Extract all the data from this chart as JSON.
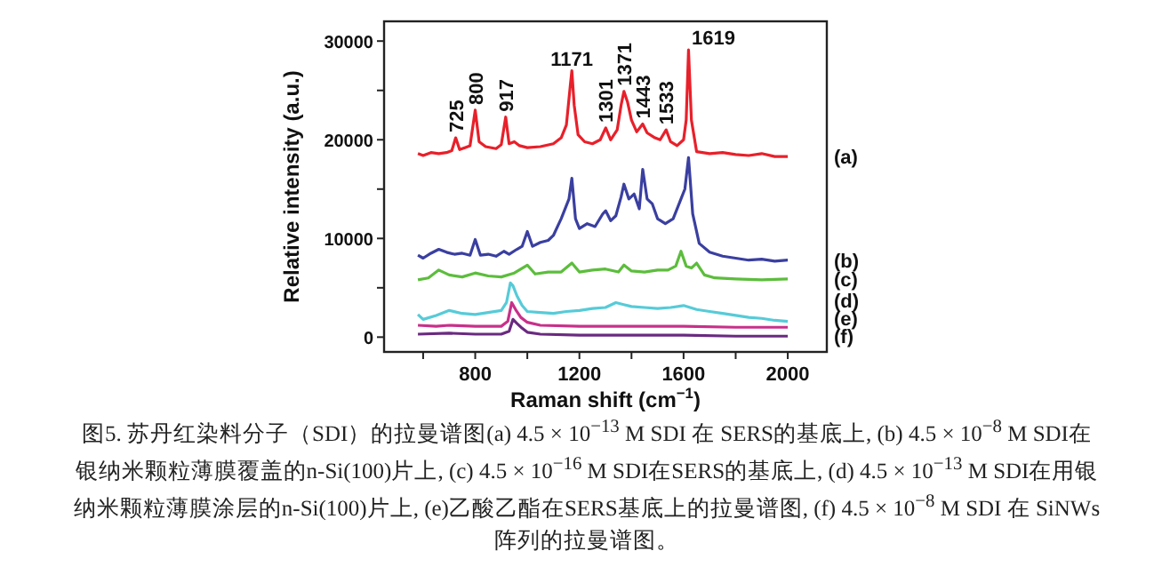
{
  "chart_data": {
    "type": "line",
    "xlabel": "Raman shift (cm$^{−1}$)",
    "ylabel": "Relative intensity (a.u.)",
    "xlim": [
      450,
      2150
    ],
    "ylim": [
      -1500,
      32000
    ],
    "xticks": [
      {
        "value": 600,
        "label": null
      },
      800,
      {
        "value": 1000,
        "label": null
      },
      1200,
      {
        "value": 1400,
        "label": null
      },
      1600,
      {
        "value": 1800,
        "label": null
      },
      2000
    ],
    "yticks": [
      0,
      {
        "value": 5000,
        "label": null
      },
      10000,
      {
        "value": 15000,
        "label": null
      },
      20000,
      {
        "value": 25000,
        "label": null
      },
      30000
    ],
    "series": [
      {
        "name": "(a)",
        "color": "#e8202a",
        "x": [
          580,
          600,
          630,
          660,
          690,
          710,
          725,
          740,
          760,
          780,
          800,
          815,
          840,
          880,
          900,
          917,
          930,
          950,
          970,
          1000,
          1050,
          1100,
          1130,
          1150,
          1165,
          1171,
          1180,
          1195,
          1220,
          1250,
          1280,
          1301,
          1320,
          1345,
          1360,
          1371,
          1385,
          1400,
          1420,
          1443,
          1460,
          1490,
          1510,
          1533,
          1550,
          1575,
          1600,
          1610,
          1619,
          1630,
          1650,
          1700,
          1750,
          1800,
          1850,
          1900,
          1950,
          2000
        ],
        "values": [
          18600,
          18400,
          18700,
          18600,
          18700,
          18900,
          20200,
          19000,
          19200,
          19400,
          23000,
          19800,
          19300,
          19100,
          19500,
          22300,
          19600,
          19800,
          19400,
          19200,
          19300,
          19600,
          20200,
          21500,
          25500,
          27000,
          23500,
          20500,
          19800,
          19600,
          20000,
          21200,
          20000,
          21000,
          23500,
          24900,
          23800,
          22000,
          20800,
          21600,
          20700,
          20200,
          20000,
          21000,
          19800,
          19400,
          20000,
          22000,
          29100,
          22000,
          18800,
          18600,
          18700,
          18500,
          18400,
          18600,
          18300,
          18300
        ]
      },
      {
        "name": "(b)",
        "color": "#3a3fa0",
        "x": [
          580,
          600,
          630,
          660,
          690,
          720,
          750,
          780,
          800,
          820,
          850,
          880,
          910,
          930,
          960,
          980,
          1000,
          1020,
          1050,
          1080,
          1100,
          1130,
          1160,
          1171,
          1185,
          1200,
          1230,
          1260,
          1290,
          1301,
          1320,
          1340,
          1360,
          1371,
          1390,
          1410,
          1430,
          1443,
          1460,
          1480,
          1500,
          1530,
          1560,
          1590,
          1605,
          1619,
          1635,
          1660,
          1700,
          1750,
          1800,
          1850,
          1900,
          1950,
          2000
        ],
        "values": [
          8300,
          8000,
          8500,
          8900,
          8600,
          8400,
          8500,
          8300,
          9900,
          8300,
          8400,
          8200,
          8700,
          8400,
          8900,
          9200,
          10700,
          9200,
          9600,
          9800,
          10300,
          12000,
          14000,
          16100,
          12000,
          11000,
          11500,
          11200,
          12500,
          12800,
          11800,
          12300,
          14200,
          15500,
          14000,
          14500,
          13000,
          17000,
          14000,
          13500,
          12000,
          11500,
          12000,
          14000,
          15000,
          18200,
          12500,
          9500,
          8600,
          8200,
          8000,
          7800,
          7900,
          7700,
          7800
        ]
      },
      {
        "name": "(c)",
        "color": "#5cbd3c",
        "x": [
          580,
          620,
          660,
          700,
          750,
          800,
          850,
          900,
          950,
          1000,
          1030,
          1080,
          1130,
          1171,
          1200,
          1250,
          1300,
          1350,
          1371,
          1400,
          1450,
          1500,
          1540,
          1570,
          1590,
          1610,
          1630,
          1650,
          1680,
          1720,
          1800,
          1900,
          2000
        ],
        "values": [
          5800,
          6000,
          6800,
          6300,
          6100,
          6500,
          6200,
          6100,
          6500,
          7300,
          6400,
          6600,
          6600,
          7500,
          6600,
          6800,
          6900,
          6600,
          7300,
          6700,
          6600,
          6800,
          6800,
          7200,
          8700,
          7200,
          7000,
          7500,
          6300,
          6000,
          5900,
          5800,
          5900
        ]
      },
      {
        "name": "(d)",
        "color": "#56cbd8",
        "x": [
          580,
          600,
          650,
          700,
          750,
          800,
          850,
          900,
          920,
          935,
          945,
          960,
          980,
          1000,
          1050,
          1100,
          1150,
          1200,
          1250,
          1300,
          1340,
          1370,
          1400,
          1450,
          1500,
          1550,
          1600,
          1650,
          1700,
          1750,
          1800,
          1850,
          1900,
          1950,
          2000
        ],
        "values": [
          2300,
          1800,
          2200,
          2700,
          2400,
          2300,
          2500,
          2700,
          3500,
          5500,
          5200,
          4200,
          3200,
          2600,
          2500,
          2400,
          2600,
          2700,
          2900,
          3000,
          3500,
          3300,
          3100,
          3000,
          2900,
          3000,
          3200,
          2800,
          2600,
          2400,
          2200,
          2000,
          1900,
          1700,
          1600
        ]
      },
      {
        "name": "(e)",
        "color": "#c8308a",
        "x": [
          580,
          650,
          700,
          800,
          900,
          925,
          940,
          955,
          975,
          1000,
          1050,
          1200,
          1400,
          1600,
          1800,
          2000
        ],
        "values": [
          1200,
          1100,
          1200,
          1100,
          1100,
          1600,
          3500,
          2800,
          2000,
          1500,
          1200,
          1100,
          1100,
          1100,
          1000,
          1000
        ]
      },
      {
        "name": "(f)",
        "color": "#6a2a80",
        "x": [
          580,
          700,
          800,
          900,
          930,
          945,
          960,
          980,
          1000,
          1050,
          1200,
          1400,
          1600,
          1800,
          2000
        ],
        "values": [
          300,
          400,
          300,
          300,
          600,
          1800,
          1400,
          900,
          500,
          300,
          200,
          200,
          200,
          100,
          100
        ]
      }
    ],
    "annotations": [
      {
        "text": "725",
        "x": 725,
        "y": 20200
      },
      {
        "text": "800",
        "x": 800,
        "y": 23000
      },
      {
        "text": "917",
        "x": 917,
        "y": 22300
      },
      {
        "text": "1171",
        "x": 1171,
        "y": 27000
      },
      {
        "text": "1301",
        "x": 1301,
        "y": 21200
      },
      {
        "text": "1371",
        "x": 1371,
        "y": 24900
      },
      {
        "text": "1443",
        "x": 1443,
        "y": 21600
      },
      {
        "text": "1533",
        "x": 1533,
        "y": 21000
      },
      {
        "text": "1619",
        "x": 1619,
        "y": 29100
      },
      "图5. 苏丹红染料分子（SDI）的拉曼谱图(a) 4.5 × 10$^{−13}$ M SDI  在  SERS的基底上, (b) 4.5 × 10$^{−8}$ M SDI在银纳米颗粒薄膜覆盖的n-Si(100)片上, (c) 4.5 × 10$^{−16}$ M SDI在SERS的基底上, (d) 4.5 × 10$^{−13}$ M SDI在用银纳米颗粒薄膜涂层的n-Si(100)片上, (e)乙酸乙酯在SERS基底上的拉曼谱图, (f) 4.5 × 10$^{−8}$ M SDI  在  SiNWs阵列的拉曼谱图。"
    ]
  }
}
